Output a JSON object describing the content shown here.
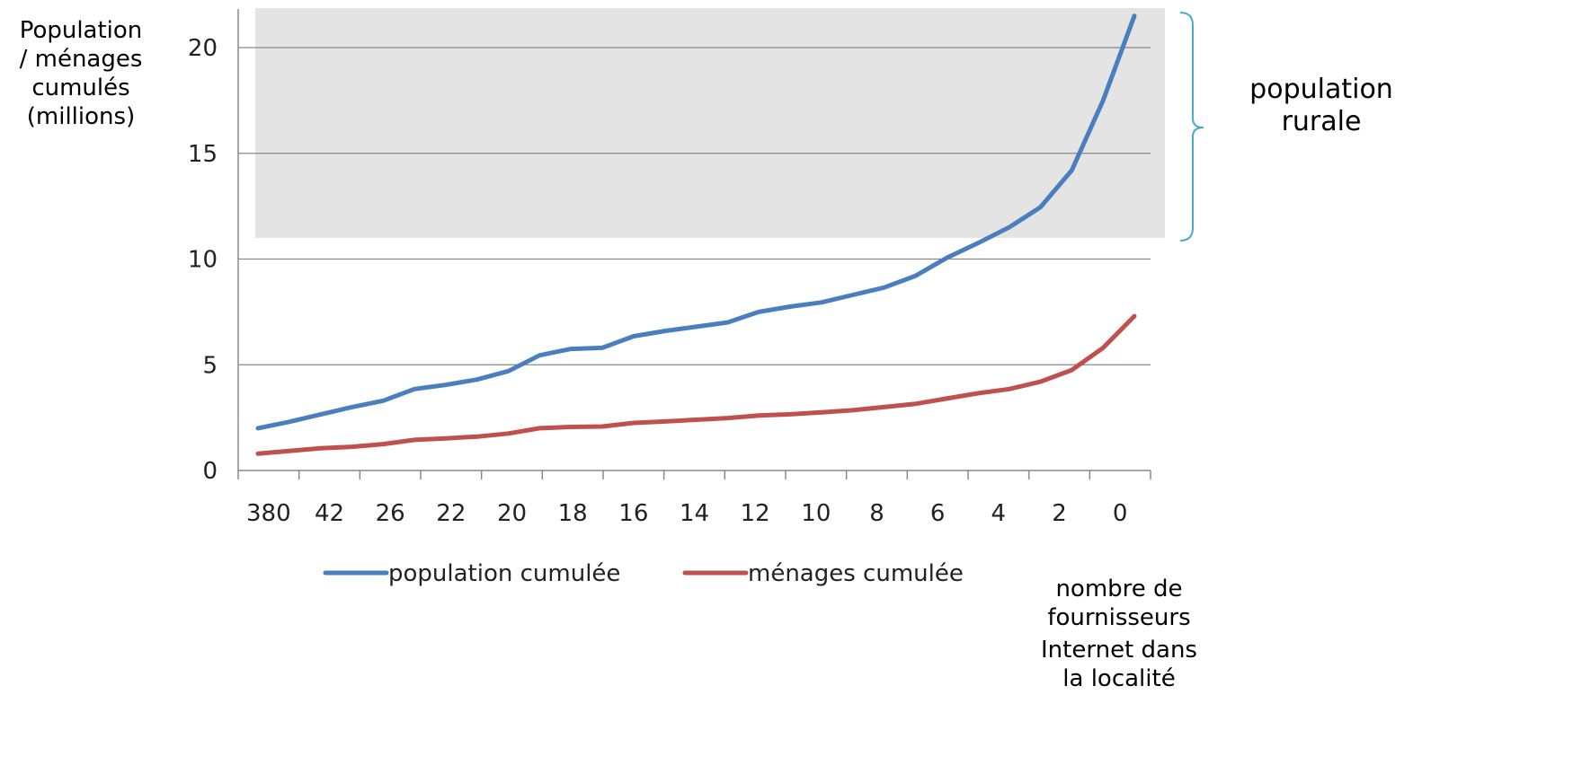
{
  "chart_data": {
    "type": "line",
    "ylabel": "Population\n/ ménages\ncumulés\n(millions)",
    "xlabel_line1": "nombre de\nfournisseurs",
    "xlabel_line2": "Internet dans\nla localité",
    "annotation": "population\nrurale",
    "ylim": [
      0,
      22
    ],
    "yticks": [
      0,
      5,
      10,
      15,
      20
    ],
    "xtick_labels": [
      "380",
      "42",
      "26",
      "22",
      "20",
      "18",
      "16",
      "14",
      "12",
      "10",
      "8",
      "6",
      "4",
      "2",
      "0"
    ],
    "shaded_region_ylim": [
      11,
      22
    ],
    "series": [
      {
        "name": "population cumulée",
        "color": "#4a7ebf",
        "values": [
          2.0,
          2.3,
          2.65,
          3.0,
          3.3,
          3.85,
          4.05,
          4.3,
          4.7,
          5.45,
          5.75,
          5.8,
          6.35,
          6.6,
          6.8,
          7.0,
          7.5,
          7.75,
          7.95,
          8.3,
          8.65,
          9.2,
          10.05,
          10.75,
          11.5,
          12.45,
          14.2,
          17.5,
          21.5
        ]
      },
      {
        "name": "ménages cumulée",
        "color": "#c0504d",
        "values": [
          0.8,
          0.92,
          1.05,
          1.12,
          1.25,
          1.45,
          1.52,
          1.6,
          1.75,
          2.0,
          2.06,
          2.08,
          2.25,
          2.32,
          2.4,
          2.48,
          2.6,
          2.66,
          2.75,
          2.85,
          3.0,
          3.15,
          3.4,
          3.65,
          3.85,
          4.2,
          4.75,
          5.8,
          7.3
        ]
      }
    ],
    "grid": "horizontal",
    "legend": "bottom"
  }
}
